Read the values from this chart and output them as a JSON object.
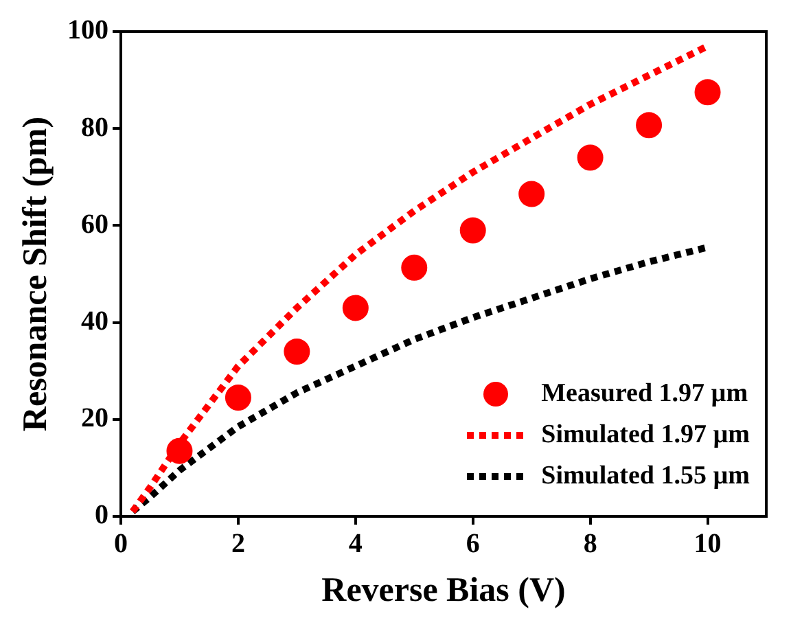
{
  "chart_data": {
    "type": "scatter",
    "xlabel": "Reverse Bias (V)",
    "ylabel": "Resonance Shift (pm)",
    "xlim": [
      0,
      11
    ],
    "xticks": [
      0,
      2,
      4,
      6,
      8,
      10
    ],
    "ylim": [
      0,
      100
    ],
    "yticks": [
      0,
      20,
      40,
      60,
      80,
      100
    ],
    "legend": "bottom right",
    "series": [
      {
        "name": "Measured 1.97 µm",
        "type": "scatter",
        "marker": "circle",
        "color": "#ff0000",
        "x": [
          1,
          2,
          3,
          4,
          5,
          6,
          7,
          8,
          9,
          10
        ],
        "values": [
          13.5,
          24.5,
          34,
          43,
          51.3,
          59,
          66.5,
          74,
          80.7,
          87.5
        ]
      },
      {
        "name": "Simulated 1.97 µm",
        "type": "line",
        "line_style": "dotted",
        "marker": "none",
        "color": "#ff0000",
        "x": [
          0.2,
          0.5,
          1,
          2,
          3,
          4,
          5,
          6,
          7,
          8,
          9,
          10
        ],
        "values": [
          1,
          6,
          15,
          31,
          43,
          54,
          63,
          71,
          78,
          85,
          91,
          97
        ]
      },
      {
        "name": "Simulated 1.55 µm",
        "type": "line",
        "line_style": "dotted",
        "marker": "none",
        "color": "#000000",
        "x": [
          0.2,
          0.5,
          1,
          2,
          3,
          4,
          5,
          6,
          7,
          8,
          9,
          10
        ],
        "values": [
          1,
          4,
          9.5,
          18.5,
          25.5,
          31,
          36.5,
          41,
          45,
          49,
          52.5,
          55.5
        ]
      }
    ]
  }
}
